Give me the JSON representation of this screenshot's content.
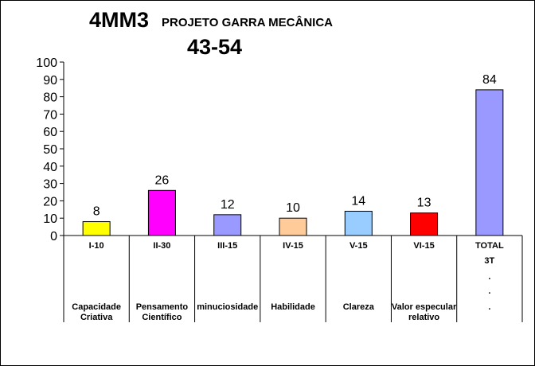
{
  "chart_data": {
    "type": "bar",
    "title": "4MM3",
    "subtitle": "PROJETO GARRA MECÂNICA",
    "title_line2": "43-54",
    "xlabel": "",
    "ylabel": "",
    "ylim": [
      0,
      100
    ],
    "yticks": [
      0,
      10,
      20,
      30,
      40,
      50,
      60,
      70,
      80,
      90,
      100
    ],
    "grid": false,
    "legend": "none",
    "categories": [
      {
        "code": "I-10",
        "lines": [
          "Capacidade",
          "Criativa"
        ],
        "value": 8,
        "color": "#ffff00"
      },
      {
        "code": "II-30",
        "lines": [
          "Pensamento",
          "Científico"
        ],
        "value": 26,
        "color": "#ff00ff"
      },
      {
        "code": "III-15",
        "lines": [
          "minuciosidade"
        ],
        "value": 12,
        "color": "#9999ff"
      },
      {
        "code": "IV-15",
        "lines": [
          "Habilidade"
        ],
        "value": 10,
        "color": "#ffcc99"
      },
      {
        "code": "V-15",
        "lines": [
          "Clareza"
        ],
        "value": 14,
        "color": "#99ccff"
      },
      {
        "code": "VI-15",
        "lines": [
          "Valor especular",
          "relativo"
        ],
        "value": 13,
        "color": "#ff0000"
      },
      {
        "code": "TOTAL",
        "lines": [],
        "extra": [
          "3T",
          ".",
          ".",
          "."
        ],
        "value": 84,
        "color": "#9999ff"
      }
    ]
  }
}
